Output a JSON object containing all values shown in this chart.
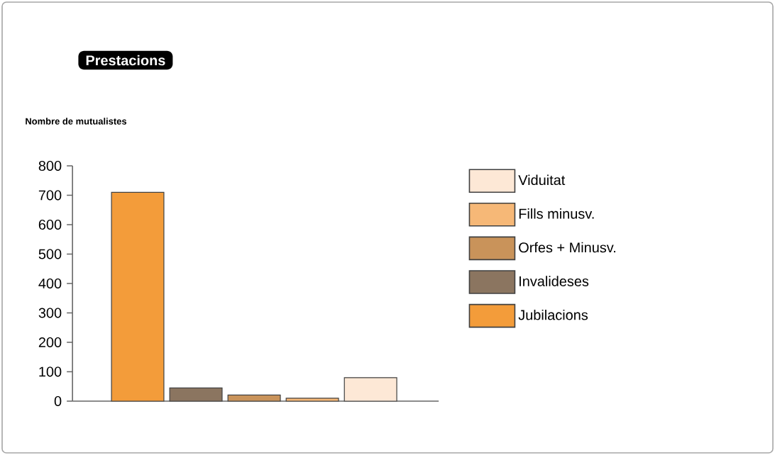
{
  "chart_data": {
    "type": "bar",
    "title": "Prestacions",
    "ylabel": "Nombre de mutualistes",
    "categories": [
      null,
      null,
      null,
      null,
      null
    ],
    "series": [
      {
        "name": "Jubilacions",
        "color": "#f39c3a",
        "values": [
          710,
          null,
          null,
          null,
          null
        ]
      },
      {
        "name": "Invalideses",
        "color": "#8b7560",
        "values": [
          null,
          45,
          null,
          null,
          null
        ]
      },
      {
        "name": "Orfes + Minusv.",
        "color": "#c9935a",
        "values": [
          null,
          null,
          21,
          null,
          null
        ]
      },
      {
        "name": "Fills minusv.",
        "color": "#f6b877",
        "values": [
          null,
          null,
          null,
          10,
          null
        ]
      },
      {
        "name": "Viduitat",
        "color": "#fde8d6",
        "values": [
          null,
          null,
          null,
          null,
          80
        ]
      }
    ],
    "ylim": [
      0,
      800
    ],
    "yticks": [
      0,
      100,
      200,
      300,
      400,
      500,
      600,
      700,
      800
    ],
    "grid": false,
    "legend": "right"
  }
}
